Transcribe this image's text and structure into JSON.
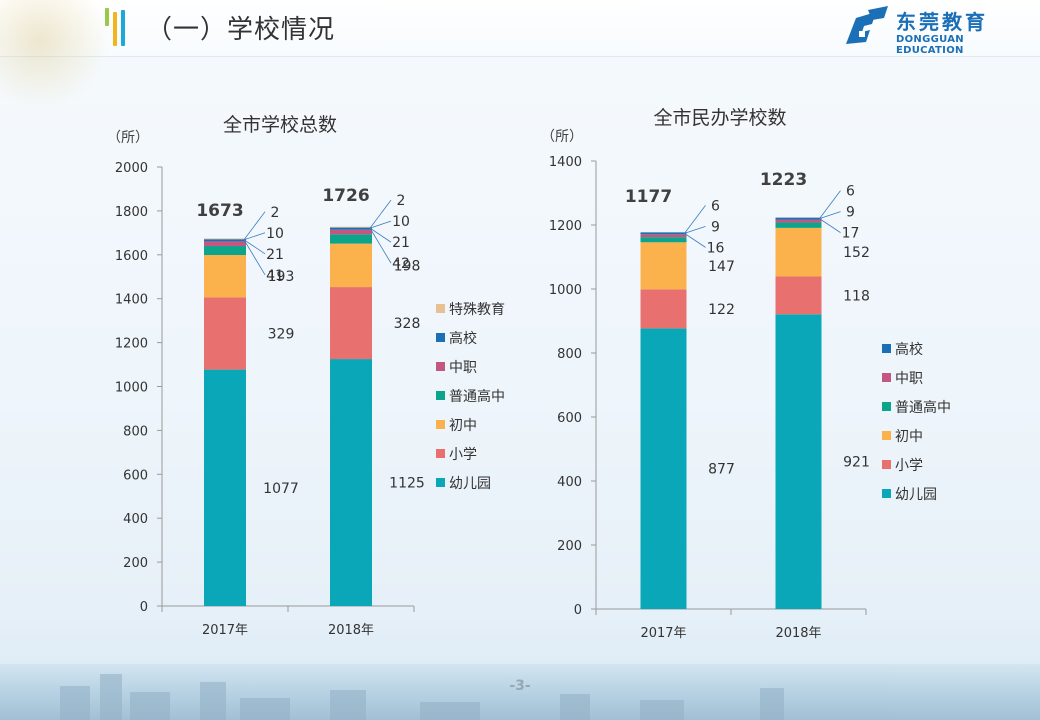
{
  "header": {
    "title": "（一）学校情况",
    "logo_cn": "东莞教育",
    "logo_en": "DONGGUAN EDUCATION"
  },
  "footer": {
    "page_number": "-3-"
  },
  "colors": {
    "幼儿园": "#0aa7b9",
    "小学": "#e8716f",
    "初中": "#fbb14c",
    "普通高中": "#0ca58b",
    "中职": "#c4577f",
    "高校": "#1a6fb5",
    "特殊教育": "#e7c18f"
  },
  "chart_data": [
    {
      "type": "bar",
      "stacked": true,
      "title": "全市学校总数",
      "ylabel": "（所）",
      "xlabel": "",
      "categories": [
        "2017年",
        "2018年"
      ],
      "ylim": [
        0,
        2000
      ],
      "yticks": [
        0,
        200,
        400,
        600,
        800,
        1000,
        1200,
        1400,
        1600,
        1800,
        2000
      ],
      "grid": false,
      "legend_position": "right",
      "legend_order": [
        "特殊教育",
        "高校",
        "中职",
        "普通高中",
        "初中",
        "小学",
        "幼儿园"
      ],
      "totals": [
        1673,
        1726
      ],
      "series": [
        {
          "name": "幼儿园",
          "values": [
            1077,
            1125
          ]
        },
        {
          "name": "小学",
          "values": [
            329,
            328
          ]
        },
        {
          "name": "初中",
          "values": [
            193,
            198
          ]
        },
        {
          "name": "普通高中",
          "values": [
            41,
            42
          ]
        },
        {
          "name": "中职",
          "values": [
            21,
            21
          ]
        },
        {
          "name": "高校",
          "values": [
            10,
            10
          ]
        },
        {
          "name": "特殊教育",
          "values": [
            2,
            2
          ]
        }
      ]
    },
    {
      "type": "bar",
      "stacked": true,
      "title": "全市民办学校数",
      "ylabel": "（所）",
      "xlabel": "",
      "categories": [
        "2017年",
        "2018年"
      ],
      "ylim": [
        0,
        1400
      ],
      "yticks": [
        0,
        200,
        400,
        600,
        800,
        1000,
        1200,
        1400
      ],
      "grid": false,
      "legend_position": "right",
      "legend_order": [
        "高校",
        "中职",
        "普通高中",
        "初中",
        "小学",
        "幼儿园"
      ],
      "totals": [
        1177,
        1223
      ],
      "series": [
        {
          "name": "幼儿园",
          "values": [
            877,
            921
          ]
        },
        {
          "name": "小学",
          "values": [
            122,
            118
          ]
        },
        {
          "name": "初中",
          "values": [
            147,
            152
          ]
        },
        {
          "name": "普通高中",
          "values": [
            16,
            17
          ]
        },
        {
          "name": "中职",
          "values": [
            9,
            9
          ]
        },
        {
          "name": "高校",
          "values": [
            6,
            6
          ]
        }
      ]
    }
  ]
}
